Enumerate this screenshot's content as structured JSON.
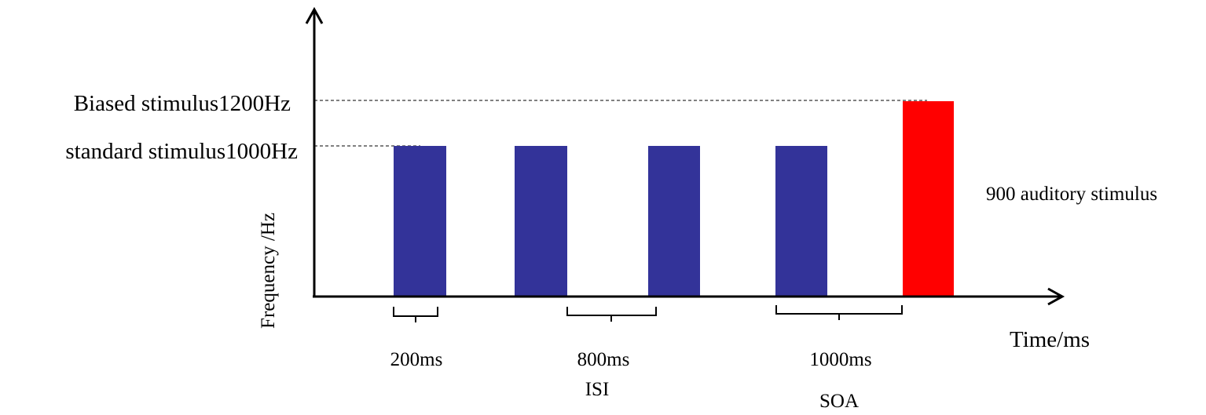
{
  "axes": {
    "y_label": "Frequency /Hz",
    "x_label": "Time/ms"
  },
  "levels": [
    {
      "label": "Biased stimulus1200Hz"
    },
    {
      "label": "standard stimulus1000Hz"
    }
  ],
  "annotation": "900 auditory stimulus",
  "intervals": [
    {
      "duration": "200ms"
    },
    {
      "duration": "800ms",
      "name": "ISI"
    },
    {
      "duration": "1000ms",
      "name": "SOA"
    }
  ]
}
